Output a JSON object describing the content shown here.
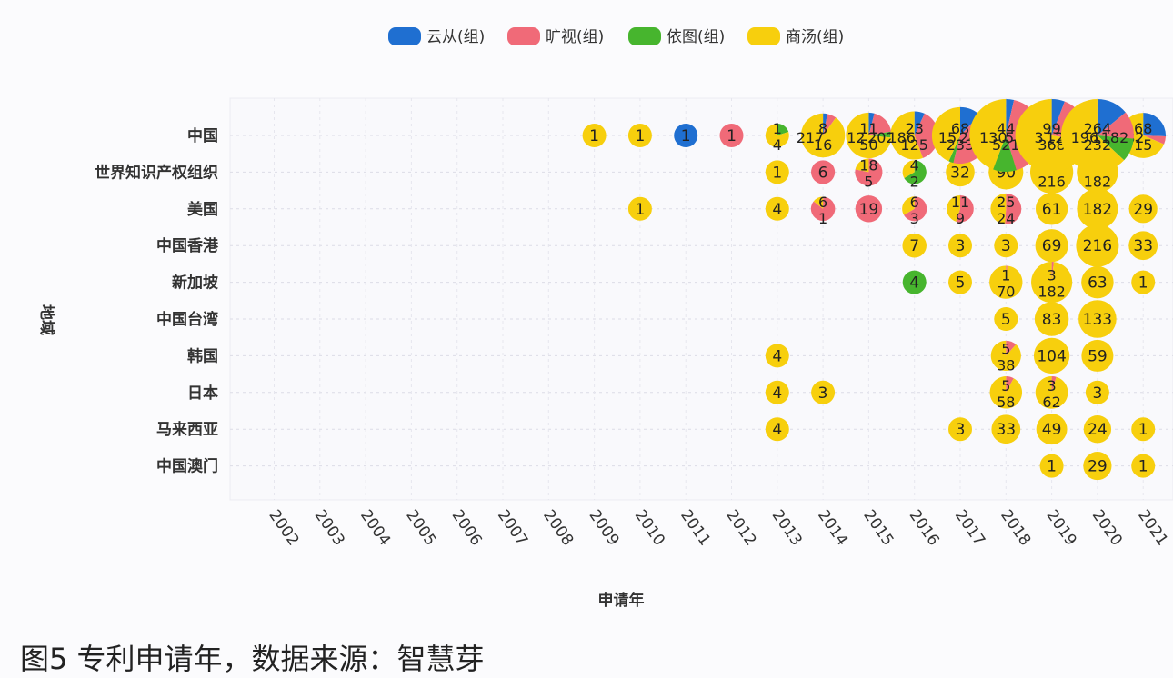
{
  "caption": "图5 专利申请年，数据来源：智慧芽",
  "chart_data": {
    "type": "scatter",
    "subtype": "bubble-pie",
    "xlabel": "申请年",
    "ylabel": "地域",
    "legend_position": "top-center",
    "grid": true,
    "x": [
      "2002",
      "2003",
      "2004",
      "2005",
      "2006",
      "2007",
      "2008",
      "2009",
      "2010",
      "2011",
      "2012",
      "2013",
      "2014",
      "2015",
      "2016",
      "2017",
      "2018",
      "2019",
      "2020",
      "2021"
    ],
    "y": [
      "中国",
      "世界知识产权组织",
      "美国",
      "中国香港",
      "新加坡",
      "中国台湾",
      "韩国",
      "日本",
      "马来西亚",
      "中国澳门"
    ],
    "series": [
      {
        "name": "云从(组)",
        "color": "#1f6fd1"
      },
      {
        "name": "旷视(组)",
        "color": "#f06a78"
      },
      {
        "name": "依图(组)",
        "color": "#47b52e"
      },
      {
        "name": "商汤(组)",
        "color": "#f7cf0d"
      }
    ],
    "points": [
      {
        "region": "中国",
        "year": "2009",
        "values": [
          0,
          0,
          0,
          1
        ]
      },
      {
        "region": "中国",
        "year": "2010",
        "values": [
          0,
          0,
          0,
          1
        ]
      },
      {
        "region": "中国",
        "year": "2011",
        "values": [
          1,
          0,
          0,
          0
        ]
      },
      {
        "region": "中国",
        "year": "2012",
        "values": [
          0,
          1,
          0,
          0
        ]
      },
      {
        "region": "中国",
        "year": "2013",
        "values": [
          0,
          0,
          1,
          4
        ]
      },
      {
        "region": "中国",
        "year": "2014",
        "values": [
          8,
          16,
          0,
          217
        ]
      },
      {
        "region": "中国",
        "year": "2015",
        "values": [
          11,
          50,
          12,
          202
        ]
      },
      {
        "region": "中国",
        "year": "2016",
        "values": [
          23,
          125,
          0,
          186
        ]
      },
      {
        "region": "中国",
        "year": "2017",
        "values": [
          68,
          233,
          15,
          242
        ]
      },
      {
        "region": "中国",
        "year": "2018",
        "values": [
          44,
          521,
          130,
          551
        ]
      },
      {
        "region": "中国",
        "year": "2019",
        "values": [
          99,
          368,
          3,
          1228
        ]
      },
      {
        "region": "中国",
        "year": "2020",
        "values": [
          264,
          232,
          196,
          1182
        ]
      },
      {
        "region": "中国",
        "year": "2021",
        "values": [
          68,
          15,
          0,
          182
        ]
      },
      {
        "region": "世界知识产权组织",
        "year": "2013",
        "values": [
          0,
          0,
          0,
          1
        ]
      },
      {
        "region": "世界知识产权组织",
        "year": "2014",
        "values": [
          0,
          6,
          0,
          0
        ]
      },
      {
        "region": "世界知识产权组织",
        "year": "2015",
        "values": [
          0,
          18,
          0,
          5
        ]
      },
      {
        "region": "世界知识产权组织",
        "year": "2016",
        "values": [
          0,
          0,
          4,
          2
        ]
      },
      {
        "region": "世界知识产权组织",
        "year": "2017",
        "values": [
          0,
          0,
          0,
          32
        ]
      },
      {
        "region": "世界知识产权组织",
        "year": "2018",
        "values": [
          0,
          0,
          0,
          90
        ]
      },
      {
        "region": "世界知识产权组织",
        "year": "2019",
        "values": [
          0,
          5,
          0,
          216
        ]
      },
      {
        "region": "世界知识产权组织",
        "year": "2020",
        "values": [
          0,
          7,
          0,
          182
        ]
      },
      {
        "region": "美国",
        "year": "2010",
        "values": [
          0,
          0,
          0,
          1
        ]
      },
      {
        "region": "美国",
        "year": "2013",
        "values": [
          0,
          0,
          0,
          4
        ]
      },
      {
        "region": "美国",
        "year": "2014",
        "values": [
          0,
          6,
          0,
          1
        ]
      },
      {
        "region": "美国",
        "year": "2015",
        "values": [
          0,
          19,
          0,
          0
        ]
      },
      {
        "region": "美国",
        "year": "2016",
        "values": [
          0,
          6,
          0,
          3
        ]
      },
      {
        "region": "美国",
        "year": "2017",
        "values": [
          0,
          11,
          0,
          9
        ]
      },
      {
        "region": "美国",
        "year": "2018",
        "values": [
          0,
          25,
          0,
          24
        ]
      },
      {
        "region": "美国",
        "year": "2019",
        "values": [
          0,
          0,
          0,
          61
        ]
      },
      {
        "region": "美国",
        "year": "2020",
        "values": [
          0,
          0,
          0,
          182
        ]
      },
      {
        "region": "美国",
        "year": "2021",
        "values": [
          0,
          0,
          0,
          29
        ]
      },
      {
        "region": "中国香港",
        "year": "2016",
        "values": [
          0,
          0,
          0,
          7
        ]
      },
      {
        "region": "中国香港",
        "year": "2017",
        "values": [
          0,
          0,
          0,
          3
        ]
      },
      {
        "region": "中国香港",
        "year": "2018",
        "values": [
          0,
          0,
          0,
          3
        ]
      },
      {
        "region": "中国香港",
        "year": "2019",
        "values": [
          0,
          0,
          0,
          69
        ]
      },
      {
        "region": "中国香港",
        "year": "2020",
        "values": [
          0,
          0,
          0,
          216
        ]
      },
      {
        "region": "中国香港",
        "year": "2021",
        "values": [
          0,
          0,
          0,
          33
        ]
      },
      {
        "region": "新加坡",
        "year": "2016",
        "values": [
          0,
          0,
          4,
          0
        ]
      },
      {
        "region": "新加坡",
        "year": "2017",
        "values": [
          0,
          0,
          0,
          5
        ]
      },
      {
        "region": "新加坡",
        "year": "2018",
        "values": [
          0,
          1,
          0,
          70
        ]
      },
      {
        "region": "新加坡",
        "year": "2019",
        "values": [
          0,
          3,
          0,
          182
        ]
      },
      {
        "region": "新加坡",
        "year": "2020",
        "values": [
          0,
          0,
          0,
          63
        ]
      },
      {
        "region": "新加坡",
        "year": "2021",
        "values": [
          0,
          0,
          0,
          1
        ]
      },
      {
        "region": "中国台湾",
        "year": "2018",
        "values": [
          0,
          0,
          0,
          5
        ]
      },
      {
        "region": "中国台湾",
        "year": "2019",
        "values": [
          0,
          0,
          0,
          83
        ]
      },
      {
        "region": "中国台湾",
        "year": "2020",
        "values": [
          0,
          0,
          0,
          133
        ]
      },
      {
        "region": "韩国",
        "year": "2013",
        "values": [
          0,
          0,
          0,
          4
        ]
      },
      {
        "region": "韩国",
        "year": "2018",
        "values": [
          0,
          5,
          0,
          38
        ]
      },
      {
        "region": "韩国",
        "year": "2019",
        "values": [
          0,
          0,
          0,
          104
        ]
      },
      {
        "region": "韩国",
        "year": "2020",
        "values": [
          0,
          0,
          0,
          59
        ]
      },
      {
        "region": "日本",
        "year": "2013",
        "values": [
          0,
          0,
          0,
          4
        ]
      },
      {
        "region": "日本",
        "year": "2014",
        "values": [
          0,
          0,
          0,
          3
        ]
      },
      {
        "region": "日本",
        "year": "2018",
        "values": [
          0,
          5,
          0,
          58
        ]
      },
      {
        "region": "日本",
        "year": "2019",
        "values": [
          0,
          3,
          0,
          62
        ]
      },
      {
        "region": "日本",
        "year": "2020",
        "values": [
          0,
          0,
          0,
          3
        ]
      },
      {
        "region": "马来西亚",
        "year": "2013",
        "values": [
          0,
          0,
          0,
          4
        ]
      },
      {
        "region": "马来西亚",
        "year": "2017",
        "values": [
          0,
          0,
          0,
          3
        ]
      },
      {
        "region": "马来西亚",
        "year": "2018",
        "values": [
          0,
          0,
          0,
          33
        ]
      },
      {
        "region": "马来西亚",
        "year": "2019",
        "values": [
          0,
          0,
          0,
          49
        ]
      },
      {
        "region": "马来西亚",
        "year": "2020",
        "values": [
          0,
          0,
          0,
          24
        ]
      },
      {
        "region": "马来西亚",
        "year": "2021",
        "values": [
          0,
          0,
          0,
          1
        ]
      },
      {
        "region": "中国澳门",
        "year": "2019",
        "values": [
          0,
          0,
          0,
          1
        ]
      },
      {
        "region": "中国澳门",
        "year": "2020",
        "values": [
          0,
          0,
          0,
          29
        ]
      },
      {
        "region": "中国澳门",
        "year": "2021",
        "values": [
          0,
          0,
          0,
          1
        ]
      }
    ]
  }
}
